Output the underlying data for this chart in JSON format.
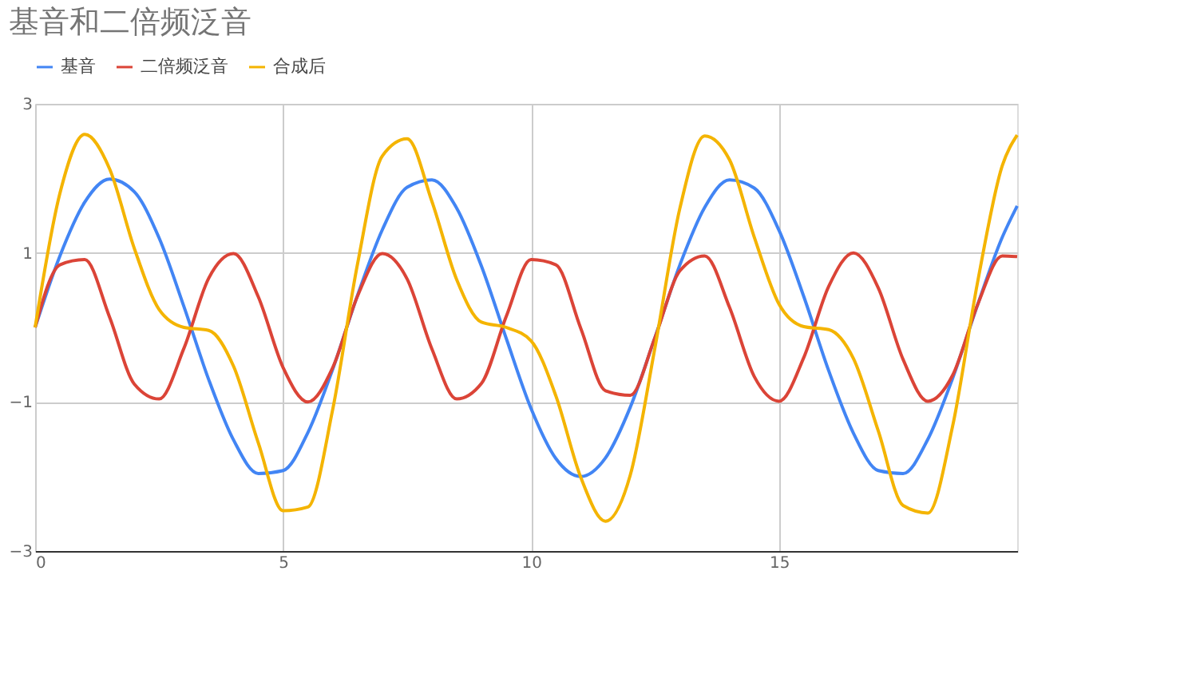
{
  "chart_data": {
    "type": "line",
    "title": "基音和二倍频泛音",
    "x": [
      0,
      0.5,
      1,
      1.5,
      2,
      2.5,
      3,
      3.5,
      4,
      4.5,
      5,
      5.5,
      6,
      6.5,
      7,
      7.5,
      8,
      8.5,
      9,
      9.5,
      10,
      10.5,
      11,
      11.5,
      12,
      12.5,
      13,
      13.5,
      14,
      14.5,
      15,
      15.5,
      16,
      16.5,
      17,
      17.5,
      18,
      18.5,
      19,
      19.5,
      19.8
    ],
    "series": [
      {
        "name": "基音",
        "color": "#4285f4",
        "values": [
          0,
          0.96,
          1.68,
          1.99,
          1.82,
          1.2,
          0.28,
          -0.7,
          -1.51,
          -1.96,
          -1.92,
          -1.41,
          -0.56,
          0.43,
          1.31,
          1.88,
          1.98,
          1.6,
          0.82,
          -0.15,
          -1.09,
          -1.76,
          -2.0,
          -1.75,
          -1.07,
          -0.13,
          0.84,
          1.61,
          1.98,
          1.87,
          1.3,
          0.41,
          -0.58,
          -1.42,
          -1.92,
          -1.96,
          -1.5,
          -0.68,
          0.3,
          1.21,
          1.63
        ]
      },
      {
        "name": "二倍频泛音",
        "color": "#db4437",
        "values": [
          0,
          0.84,
          0.91,
          0.14,
          -0.76,
          -0.96,
          -0.28,
          0.66,
          0.99,
          0.41,
          -0.54,
          -1.0,
          -0.54,
          0.42,
          0.99,
          0.65,
          -0.29,
          -0.96,
          -0.75,
          0.15,
          0.91,
          0.84,
          -0.01,
          -0.85,
          -0.91,
          -0.13,
          0.76,
          0.96,
          0.27,
          -0.66,
          -0.99,
          -0.4,
          0.55,
          1.0,
          0.53,
          -0.43,
          -0.99,
          -0.64,
          0.3,
          0.96,
          0.95
        ]
      },
      {
        "name": "合成后",
        "color": "#f4b400",
        "values": [
          0,
          1.8,
          2.59,
          2.13,
          1.06,
          0.24,
          0.0,
          -0.04,
          -0.52,
          -1.55,
          -2.46,
          -2.41,
          -1.1,
          0.85,
          2.3,
          2.53,
          1.69,
          0.64,
          0.07,
          0.0,
          -0.18,
          -0.92,
          -2.01,
          -2.6,
          -1.98,
          -0.26,
          1.6,
          2.57,
          2.25,
          1.21,
          0.31,
          0.01,
          -0.03,
          -0.42,
          -1.39,
          -2.39,
          -2.49,
          -1.32,
          0.6,
          2.17,
          2.58
        ]
      }
    ],
    "xlim": [
      0,
      19.8
    ],
    "xticks": [
      0,
      5,
      10,
      15
    ],
    "ylim": [
      -3,
      3
    ],
    "yticks": [
      -3,
      -1,
      1,
      3
    ],
    "grid": true,
    "legend": "top",
    "marker": "none",
    "line_style": "solid"
  }
}
